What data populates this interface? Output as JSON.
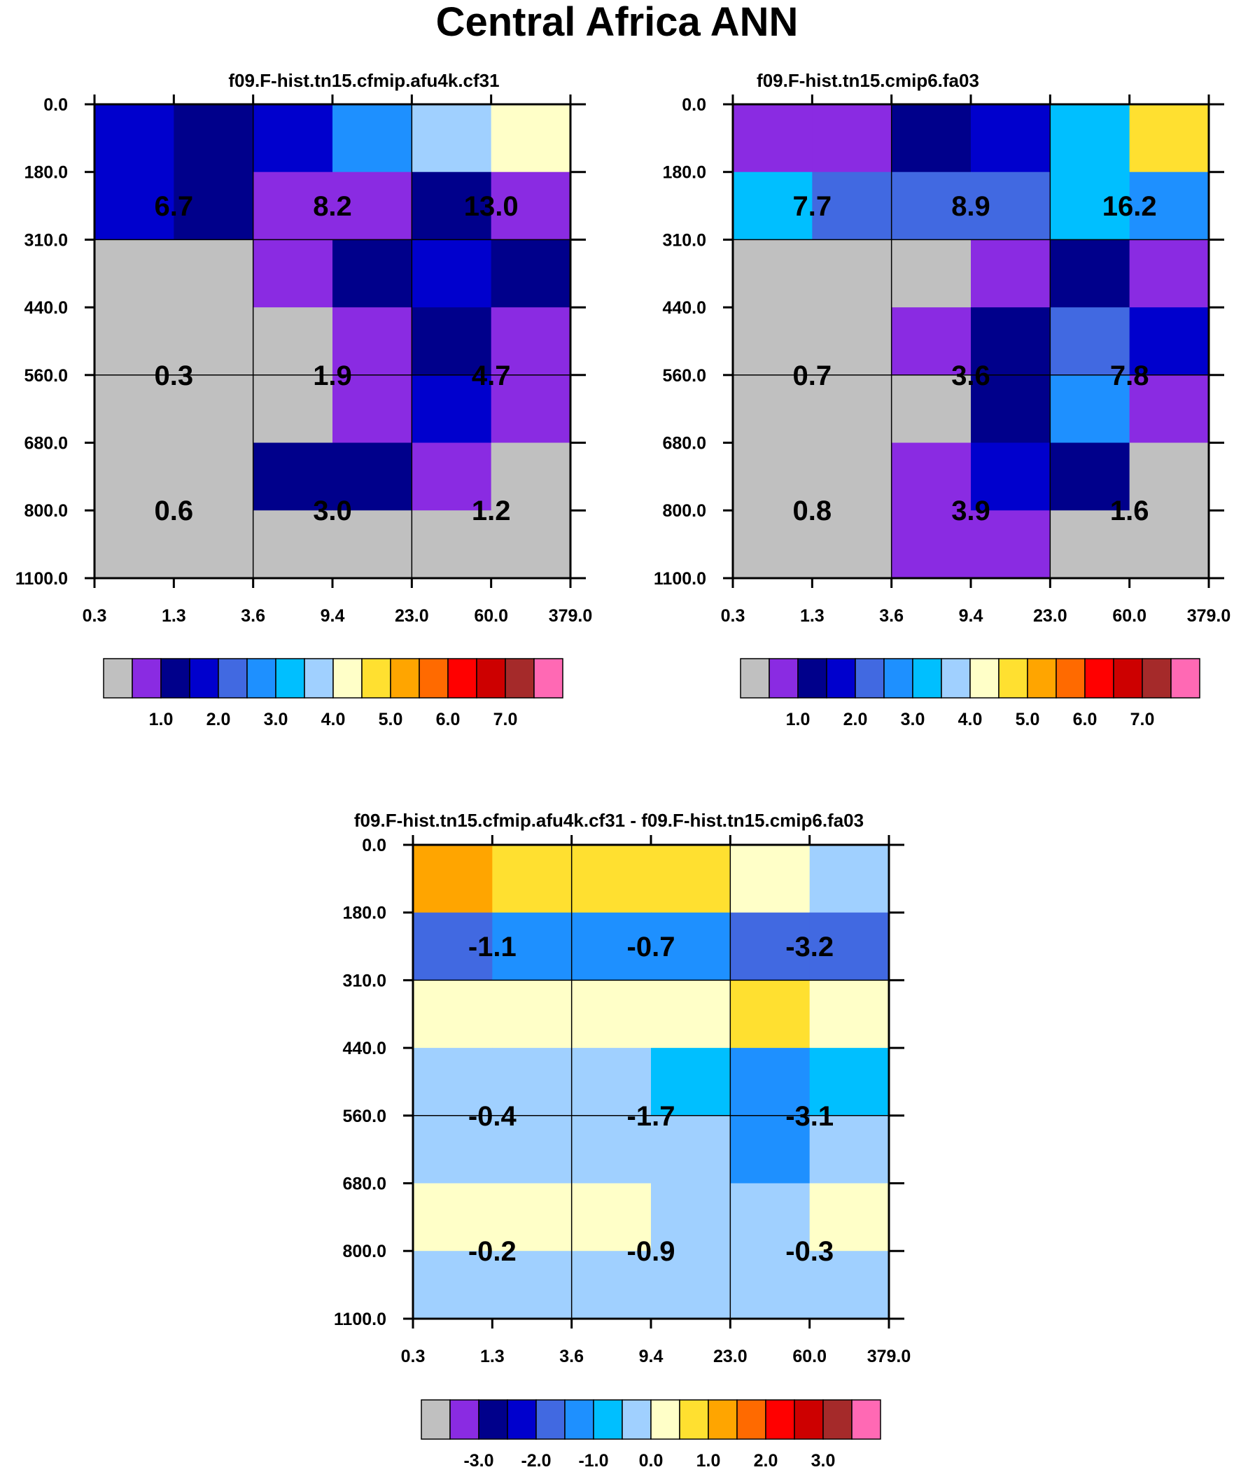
{
  "title": "Central Africa ANN",
  "colormap": [
    "#c0c0c0",
    "#8a2be2",
    "#00008b",
    "#0000cd",
    "#4169e1",
    "#1e90ff",
    "#00bfff",
    "#a0d0ff",
    "#ffffc8",
    "#ffe030",
    "#ffa500",
    "#ff6a00",
    "#ff0000",
    "#cd0000",
    "#a52a2a",
    "#ff69b4"
  ],
  "chart_data": [
    {
      "type": "heatmap",
      "title": "f09.F-hist.tn15.cfmip.afu4k.cf31",
      "xticks": [
        "0.3",
        "1.3",
        "3.6",
        "9.4",
        "23.0",
        "60.0",
        "379.0"
      ],
      "yticks": [
        "0.0",
        "180.0",
        "310.0",
        "440.0",
        "560.0",
        "680.0",
        "800.0",
        "1100.0"
      ],
      "color_index_grid": [
        [
          3,
          2,
          3,
          5,
          7,
          8
        ],
        [
          3,
          2,
          1,
          1,
          2,
          1
        ],
        [
          0,
          0,
          1,
          2,
          3,
          2
        ],
        [
          0,
          0,
          0,
          1,
          2,
          1
        ],
        [
          0,
          0,
          0,
          1,
          3,
          1
        ],
        [
          0,
          0,
          2,
          2,
          1,
          0
        ],
        [
          0,
          0,
          0,
          0,
          0,
          0
        ]
      ],
      "block_values": [
        [
          "6.7",
          "8.2",
          "13.0"
        ],
        [
          "0.3",
          "1.9",
          "4.7"
        ],
        [
          "0.6",
          "3.0",
          "1.2"
        ]
      ],
      "colorbar_labels": [
        "1.0",
        "2.0",
        "3.0",
        "4.0",
        "5.0",
        "6.0",
        "7.0"
      ]
    },
    {
      "type": "heatmap",
      "title": "f09.F-hist.tn15.cmip6.fa03",
      "xticks": [
        "0.3",
        "1.3",
        "3.6",
        "9.4",
        "23.0",
        "60.0",
        "379.0"
      ],
      "yticks": [
        "0.0",
        "180.0",
        "310.0",
        "440.0",
        "560.0",
        "680.0",
        "800.0",
        "1100.0"
      ],
      "color_index_grid": [
        [
          1,
          1,
          2,
          3,
          6,
          9
        ],
        [
          6,
          4,
          4,
          4,
          6,
          5
        ],
        [
          0,
          0,
          0,
          1,
          2,
          1
        ],
        [
          0,
          0,
          1,
          2,
          4,
          3
        ],
        [
          0,
          0,
          0,
          2,
          5,
          1
        ],
        [
          0,
          0,
          1,
          3,
          2,
          0
        ],
        [
          0,
          0,
          1,
          1,
          0,
          0
        ]
      ],
      "block_values": [
        [
          "7.7",
          "8.9",
          "16.2"
        ],
        [
          "0.7",
          "3.6",
          "7.8"
        ],
        [
          "0.8",
          "3.9",
          "1.6"
        ]
      ],
      "colorbar_labels": [
        "1.0",
        "2.0",
        "3.0",
        "4.0",
        "5.0",
        "6.0",
        "7.0"
      ]
    },
    {
      "type": "heatmap",
      "title": "f09.F-hist.tn15.cfmip.afu4k.cf31 - f09.F-hist.tn15.cmip6.fa03",
      "xticks": [
        "0.3",
        "1.3",
        "3.6",
        "9.4",
        "23.0",
        "60.0",
        "379.0"
      ],
      "yticks": [
        "0.0",
        "180.0",
        "310.0",
        "440.0",
        "560.0",
        "680.0",
        "800.0",
        "1100.0"
      ],
      "color_index_grid": [
        [
          10,
          9,
          9,
          9,
          8,
          7
        ],
        [
          4,
          5,
          5,
          5,
          4,
          4
        ],
        [
          8,
          8,
          8,
          8,
          9,
          8
        ],
        [
          7,
          7,
          7,
          6,
          5,
          6
        ],
        [
          7,
          7,
          7,
          7,
          5,
          7
        ],
        [
          8,
          8,
          8,
          7,
          7,
          8
        ],
        [
          7,
          7,
          7,
          7,
          7,
          7
        ]
      ],
      "block_values": [
        [
          "-1.1",
          "-0.7",
          "-3.2"
        ],
        [
          "-0.4",
          "-1.7",
          "-3.1"
        ],
        [
          "-0.2",
          "-0.9",
          "-0.3"
        ]
      ],
      "colorbar_labels": [
        "-3.0",
        "-2.0",
        "-1.0",
        "0.0",
        "1.0",
        "2.0",
        "3.0"
      ]
    }
  ]
}
